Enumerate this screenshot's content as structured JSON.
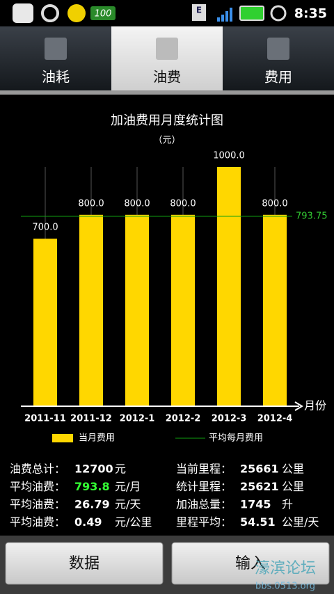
{
  "status_bar": {
    "battery_badge": "100",
    "network": "E",
    "time": "8:35"
  },
  "tabs": {
    "items": [
      "油耗",
      "油费",
      "费用"
    ],
    "active": 1
  },
  "chart_data": {
    "type": "bar",
    "title": "加油费用月度统计图",
    "subtitle": "（元）",
    "categories": [
      "2011-11",
      "2011-12",
      "2012-1",
      "2012-2",
      "2012-3",
      "2012-4"
    ],
    "series": [
      {
        "name": "当月费用",
        "color": "#ffd700",
        "values": [
          700,
          800,
          800,
          800,
          1000,
          800
        ],
        "value_labels": [
          "700.0",
          "800.0",
          "800.0",
          "800.0",
          "1000.0",
          "800.0"
        ]
      }
    ],
    "average": {
      "name": "平均每月费用",
      "value": 793.75,
      "color": "#10a010"
    },
    "x_label": "月份",
    "ylim": [
      0,
      1000
    ]
  },
  "stats": {
    "left": [
      {
        "label": "油费总计：",
        "value": "12700",
        "unit": "元"
      },
      {
        "label": "平均油费：",
        "value": "793.8",
        "unit": "元/月",
        "color": "#33ff33"
      },
      {
        "label": "平均油费：",
        "value": "26.79",
        "unit": "元/天"
      },
      {
        "label": "平均油费：",
        "value": "0.49",
        "unit": "元/公里"
      }
    ],
    "right": [
      {
        "label": "当前里程：",
        "value": "25661",
        "unit": "公里"
      },
      {
        "label": "统计里程：",
        "value": "25621",
        "unit": "公里"
      },
      {
        "label": "加油总量：",
        "value": "1745",
        "unit": "升"
      },
      {
        "label": "里程平均：",
        "value": "54.51",
        "unit": "公里/天"
      }
    ]
  },
  "buttons": [
    "数据",
    "输入"
  ],
  "watermark": {
    "name": "濠滨论坛",
    "url": "bbs.0513.org"
  }
}
